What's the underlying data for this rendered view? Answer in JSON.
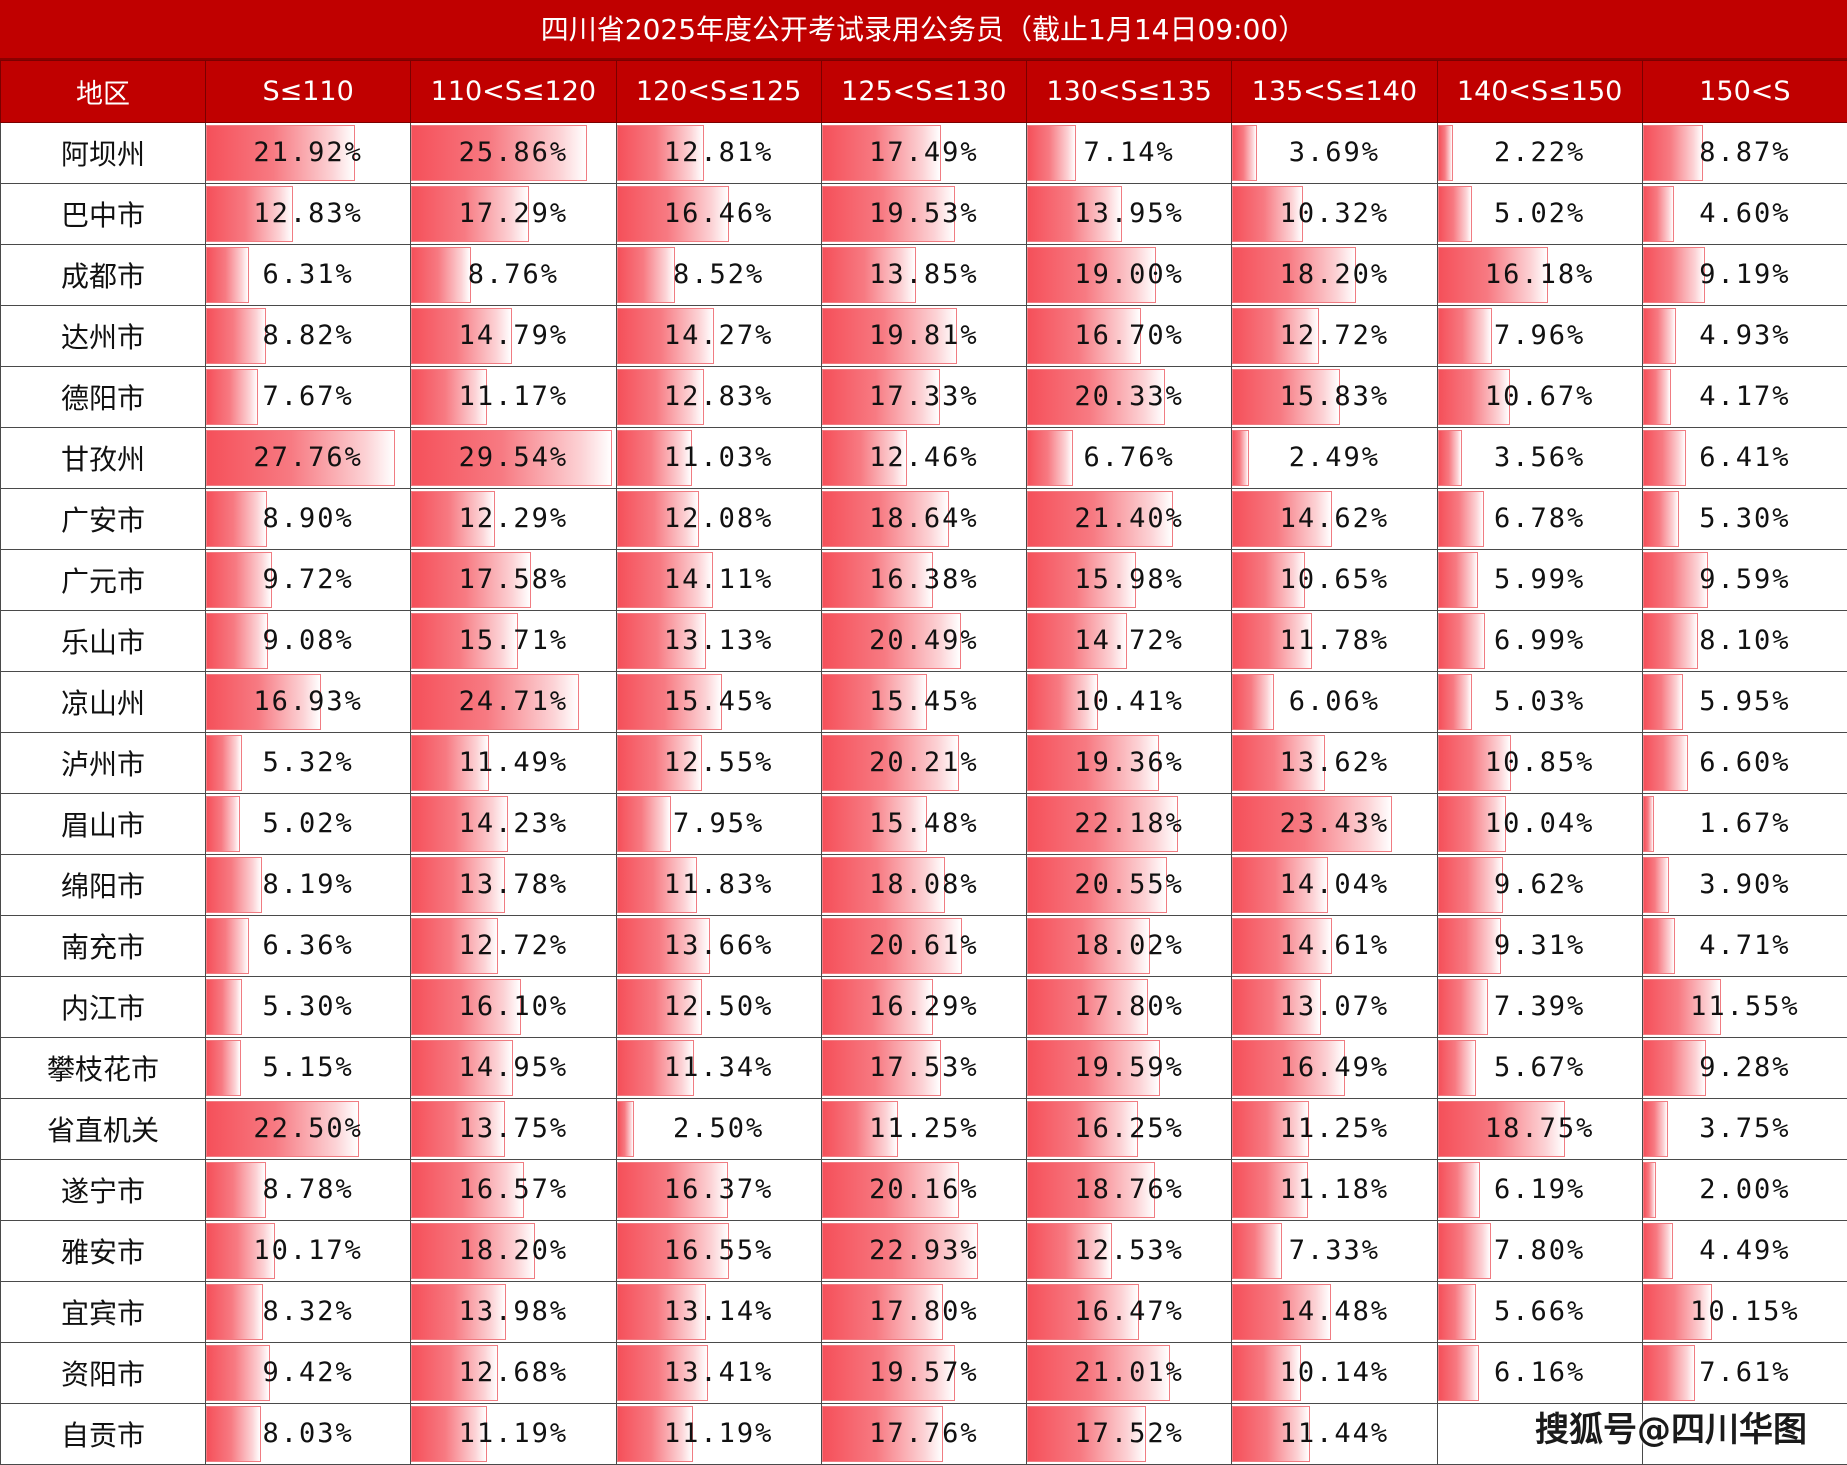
{
  "title": "四川省2025年度公开考试录用公务员（截止1月14日09:00）",
  "headers": [
    "地区",
    "S≤110",
    "110<S≤120",
    "120<S≤125",
    "125<S≤130",
    "130<S≤135",
    "135<S≤140",
    "140<S≤150",
    "150<S"
  ],
  "bar_scale_max_percent": 30,
  "colors": {
    "header_bg": "#c00000",
    "header_text": "#ffffff",
    "bar": "#f5505a",
    "grid": "#4a4a4a"
  },
  "rows": [
    {
      "region": "阿坝州",
      "values": [
        "21.92%",
        "25.86%",
        "12.81%",
        "17.49%",
        "7.14%",
        "3.69%",
        "2.22%",
        "8.87%"
      ]
    },
    {
      "region": "巴中市",
      "values": [
        "12.83%",
        "17.29%",
        "16.46%",
        "19.53%",
        "13.95%",
        "10.32%",
        "5.02%",
        "4.60%"
      ]
    },
    {
      "region": "成都市",
      "values": [
        "6.31%",
        "8.76%",
        "8.52%",
        "13.85%",
        "19.00%",
        "18.20%",
        "16.18%",
        "9.19%"
      ]
    },
    {
      "region": "达州市",
      "values": [
        "8.82%",
        "14.79%",
        "14.27%",
        "19.81%",
        "16.70%",
        "12.72%",
        "7.96%",
        "4.93%"
      ]
    },
    {
      "region": "德阳市",
      "values": [
        "7.67%",
        "11.17%",
        "12.83%",
        "17.33%",
        "20.33%",
        "15.83%",
        "10.67%",
        "4.17%"
      ]
    },
    {
      "region": "甘孜州",
      "values": [
        "27.76%",
        "29.54%",
        "11.03%",
        "12.46%",
        "6.76%",
        "2.49%",
        "3.56%",
        "6.41%"
      ]
    },
    {
      "region": "广安市",
      "values": [
        "8.90%",
        "12.29%",
        "12.08%",
        "18.64%",
        "21.40%",
        "14.62%",
        "6.78%",
        "5.30%"
      ]
    },
    {
      "region": "广元市",
      "values": [
        "9.72%",
        "17.58%",
        "14.11%",
        "16.38%",
        "15.98%",
        "10.65%",
        "5.99%",
        "9.59%"
      ]
    },
    {
      "region": "乐山市",
      "values": [
        "9.08%",
        "15.71%",
        "13.13%",
        "20.49%",
        "14.72%",
        "11.78%",
        "6.99%",
        "8.10%"
      ]
    },
    {
      "region": "凉山州",
      "values": [
        "16.93%",
        "24.71%",
        "15.45%",
        "15.45%",
        "10.41%",
        "6.06%",
        "5.03%",
        "5.95%"
      ]
    },
    {
      "region": "泸州市",
      "values": [
        "5.32%",
        "11.49%",
        "12.55%",
        "20.21%",
        "19.36%",
        "13.62%",
        "10.85%",
        "6.60%"
      ]
    },
    {
      "region": "眉山市",
      "values": [
        "5.02%",
        "14.23%",
        "7.95%",
        "15.48%",
        "22.18%",
        "23.43%",
        "10.04%",
        "1.67%"
      ]
    },
    {
      "region": "绵阳市",
      "values": [
        "8.19%",
        "13.78%",
        "11.83%",
        "18.08%",
        "20.55%",
        "14.04%",
        "9.62%",
        "3.90%"
      ]
    },
    {
      "region": "南充市",
      "values": [
        "6.36%",
        "12.72%",
        "13.66%",
        "20.61%",
        "18.02%",
        "14.61%",
        "9.31%",
        "4.71%"
      ]
    },
    {
      "region": "内江市",
      "values": [
        "5.30%",
        "16.10%",
        "12.50%",
        "16.29%",
        "17.80%",
        "13.07%",
        "7.39%",
        "11.55%"
      ]
    },
    {
      "region": "攀枝花市",
      "values": [
        "5.15%",
        "14.95%",
        "11.34%",
        "17.53%",
        "19.59%",
        "16.49%",
        "5.67%",
        "9.28%"
      ]
    },
    {
      "region": "省直机关",
      "values": [
        "22.50%",
        "13.75%",
        "2.50%",
        "11.25%",
        "16.25%",
        "11.25%",
        "18.75%",
        "3.75%"
      ]
    },
    {
      "region": "遂宁市",
      "values": [
        "8.78%",
        "16.57%",
        "16.37%",
        "20.16%",
        "18.76%",
        "11.18%",
        "6.19%",
        "2.00%"
      ]
    },
    {
      "region": "雅安市",
      "values": [
        "10.17%",
        "18.20%",
        "16.55%",
        "22.93%",
        "12.53%",
        "7.33%",
        "7.80%",
        "4.49%"
      ]
    },
    {
      "region": "宜宾市",
      "values": [
        "8.32%",
        "13.98%",
        "13.14%",
        "17.80%",
        "16.47%",
        "14.48%",
        "5.66%",
        "10.15%"
      ]
    },
    {
      "region": "资阳市",
      "values": [
        "9.42%",
        "12.68%",
        "13.41%",
        "19.57%",
        "21.01%",
        "10.14%",
        "6.16%",
        "7.61%"
      ]
    },
    {
      "region": "自贡市",
      "values": [
        "8.03%",
        "11.19%",
        "11.19%",
        "17.76%",
        "17.52%",
        "11.44%",
        "",
        ""
      ]
    }
  ],
  "watermark": "搜狐号@四川华图"
}
